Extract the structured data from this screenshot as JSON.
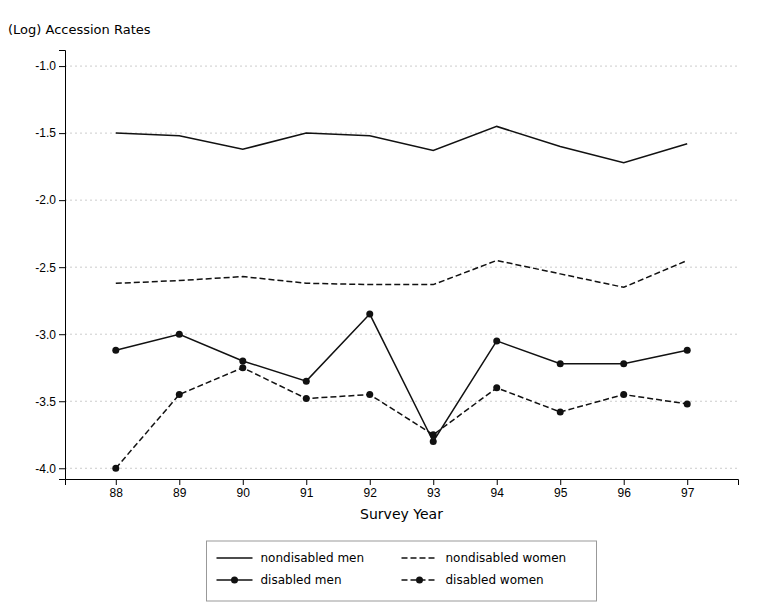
{
  "chart_data": {
    "type": "line",
    "xlabel": "Survey Year",
    "ylabel": "(Log) Accession Rates",
    "x": [
      88,
      89,
      90,
      91,
      92,
      93,
      94,
      95,
      96,
      97
    ],
    "series": [
      {
        "name": "nondisabled men",
        "color": "#111111",
        "line_style": "solid",
        "values": [
          -1.5,
          -1.52,
          -1.62,
          -1.5,
          -1.52,
          -1.63,
          -1.45,
          -1.6,
          -1.72,
          -1.58
        ]
      },
      {
        "name": "nondisabled women",
        "color": "#111111",
        "line_style": "dashed",
        "values": [
          -2.62,
          -2.6,
          -2.57,
          -2.62,
          -2.63,
          -2.63,
          -2.45,
          -2.55,
          -2.65,
          -2.45
        ]
      },
      {
        "name": "disabled men",
        "color": "#111111",
        "line_style": "solid",
        "marker": "circle",
        "values": [
          -3.12,
          -3.0,
          -3.2,
          -3.35,
          -2.85,
          -3.8,
          -3.05,
          -3.22,
          -3.22,
          -3.12
        ]
      },
      {
        "name": "disabled women",
        "color": "#111111",
        "line_style": "dashed",
        "marker": "circle",
        "values": [
          -4.0,
          -3.45,
          -3.25,
          -3.48,
          -3.45,
          -3.75,
          -3.4,
          -3.58,
          -3.45,
          -3.52
        ]
      }
    ],
    "xlim": [
      87.2,
      97.8
    ],
    "xticks": [
      88,
      89,
      90,
      91,
      92,
      93,
      94,
      95,
      96,
      97
    ],
    "ylim": [
      -4.08,
      -0.88
    ],
    "yticks": [
      {
        "value": -4.0,
        "label": "-4.0"
      },
      -3.5,
      {
        "value": -3.0,
        "label": "-3.0"
      },
      -2.5,
      {
        "value": -2.0,
        "label": "-2.0"
      },
      -1.5,
      {
        "value": -1.0,
        "label": "-1.0"
      }
    ],
    "grid": true,
    "legend": "bottom"
  }
}
